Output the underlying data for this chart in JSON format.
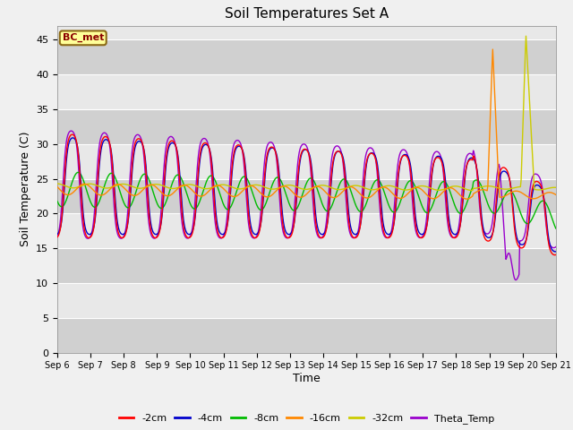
{
  "title": "Soil Temperatures Set A",
  "xlabel": "Time",
  "ylabel": "Soil Temperature (C)",
  "ylim": [
    0,
    47
  ],
  "yticks": [
    0,
    5,
    10,
    15,
    20,
    25,
    30,
    35,
    40,
    45
  ],
  "annotation": "BC_met",
  "legend_entries": [
    "-2cm",
    "-4cm",
    "-8cm",
    "-16cm",
    "-32cm",
    "Theta_Temp"
  ],
  "legend_colors": [
    "#ff0000",
    "#0000cc",
    "#00bb00",
    "#ff8800",
    "#cccc00",
    "#9900cc"
  ],
  "fig_bg": "#f0f0f0",
  "ax_bg": "#e8e8e8",
  "grid_color": "#ffffff",
  "n_days": 15,
  "start_day": 6,
  "n_per_day": 48,
  "band_colors": [
    "#d8d8d8",
    "#e8e8e8"
  ]
}
